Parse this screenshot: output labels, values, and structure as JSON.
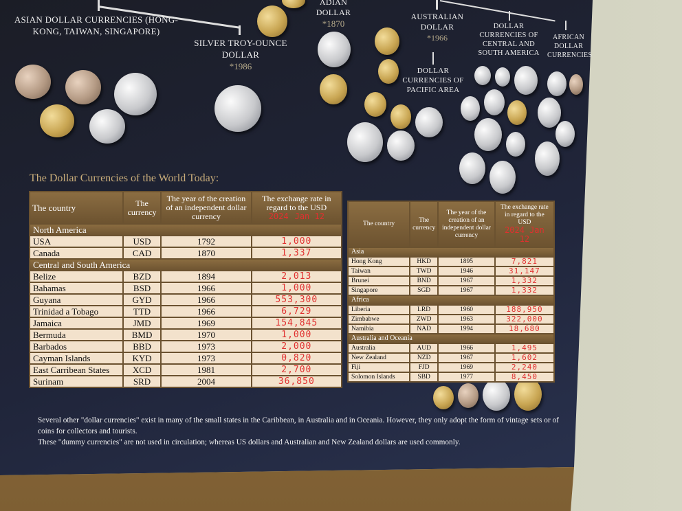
{
  "labels": {
    "asian": "Asian dollar currencies (Hong-Kong, Taiwan, Singapore)",
    "silver": "Silver troy-ounce dollar",
    "silver_year": "*1986",
    "canadian": "adian dollar",
    "canadian_year": "*1870",
    "australian": "Australian dollar",
    "australian_year": "*1966",
    "pacific": "Dollar currencies of Pacific area",
    "central_south": "Dollar currencies of Central and South America",
    "african": "African dollar currencies"
  },
  "title": "The Dollar Currencies of the World Today:",
  "headers": {
    "country": "The country",
    "currency": "The currency",
    "year": "The year of the creation of an independent dollar currency",
    "rate": "The exchange rate in regard to the USD",
    "hand_year": "2024",
    "hand_date": "Jan 12"
  },
  "left_table": {
    "sections": [
      {
        "name": "North America",
        "rows": [
          {
            "country": "USA",
            "code": "USD",
            "year": "1792",
            "rate": "1,000"
          },
          {
            "country": "Canada",
            "code": "CAD",
            "year": "1870",
            "rate": "1,337"
          }
        ]
      },
      {
        "name": "Central and South America",
        "rows": [
          {
            "country": "Belize",
            "code": "BZD",
            "year": "1894",
            "rate": "2,013"
          },
          {
            "country": "Bahamas",
            "code": "BSD",
            "year": "1966",
            "rate": "1,000"
          },
          {
            "country": "Guyana",
            "code": "GYD",
            "year": "1966",
            "rate": "553,300"
          },
          {
            "country": "Trinidad a Tobago",
            "code": "TTD",
            "year": "1966",
            "rate": "6,729"
          },
          {
            "country": "Jamaica",
            "code": "JMD",
            "year": "1969",
            "rate": "154,845"
          },
          {
            "country": "Bermuda",
            "code": "BMD",
            "year": "1970",
            "rate": "1,000"
          },
          {
            "country": "Barbados",
            "code": "BBD",
            "year": "1973",
            "rate": "2,000"
          },
          {
            "country": "Cayman Islands",
            "code": "KYD",
            "year": "1973",
            "rate": "0,820"
          },
          {
            "country": "East Carribean States",
            "code": "XCD",
            "year": "1981",
            "rate": "2,700"
          },
          {
            "country": "Surinam",
            "code": "SRD",
            "year": "2004",
            "rate": "36,850"
          }
        ]
      }
    ]
  },
  "right_table": {
    "sections": [
      {
        "name": "Asia",
        "rows": [
          {
            "country": "Hong Kong",
            "code": "HKD",
            "year": "1895",
            "rate": "7,821"
          },
          {
            "country": "Taiwan",
            "code": "TWD",
            "year": "1946",
            "rate": "31,147"
          },
          {
            "country": "Brunei",
            "code": "BND",
            "year": "1967",
            "rate": "1,332"
          },
          {
            "country": "Singapore",
            "code": "SGD",
            "year": "1967",
            "rate": "1,332"
          }
        ]
      },
      {
        "name": "Africa",
        "rows": [
          {
            "country": "Liberia",
            "code": "LRD",
            "year": "1960",
            "rate": "188,950"
          },
          {
            "country": "Zimbabwe",
            "code": "ZWD",
            "year": "1963",
            "rate": "322,000"
          },
          {
            "country": "Namibia",
            "code": "NAD",
            "year": "1994",
            "rate": "18,680"
          }
        ]
      },
      {
        "name": "Australia and Oceania",
        "rows": [
          {
            "country": "Australia",
            "code": "AUD",
            "year": "1966",
            "rate": "1,495"
          },
          {
            "country": "New Zealand",
            "code": "NZD",
            "year": "1967",
            "rate": "1,602"
          },
          {
            "country": "Fiji",
            "code": "FJD",
            "year": "1969",
            "rate": "2,240"
          },
          {
            "country": "Solomon Islands",
            "code": "SBD",
            "year": "1977",
            "rate": "8,450"
          }
        ]
      }
    ]
  },
  "note": [
    "Several other \"dollar currencies\" exist in many of the small states in the Caribbean, in Australia and in Oceania. However, they only adopt the form of vintage sets or of coins for collectors and tourists.",
    "These \"dummy currencies\" are not used in circulation; whereas US dollars and Australian and New Zealand dollars are used commonly."
  ]
}
